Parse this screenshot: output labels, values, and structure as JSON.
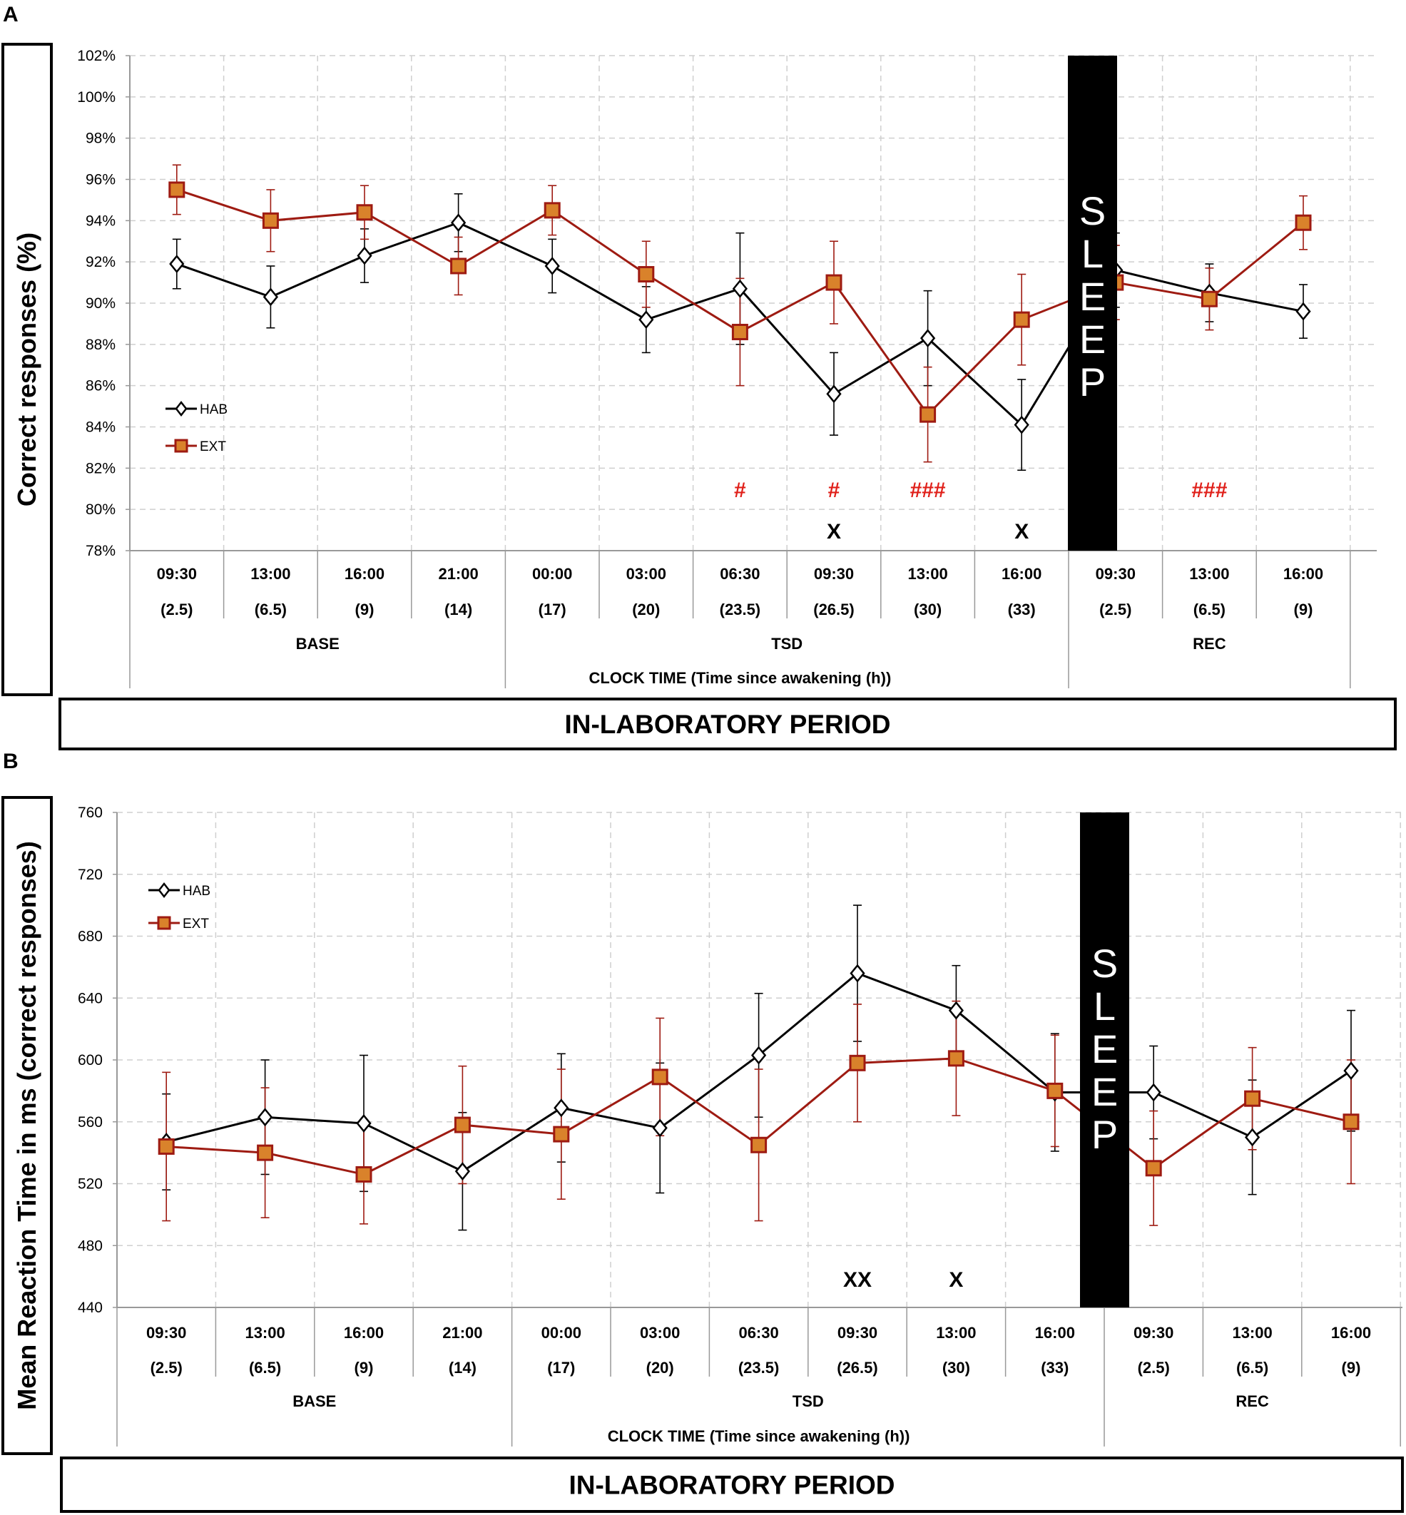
{
  "panel_letters": {
    "a": "A",
    "b": "B"
  },
  "chart_data": [
    {
      "type": "line",
      "panel": "A",
      "title": "",
      "ylabel": "Correct responses (%)",
      "xlabel": "CLOCK TIME  (Time since awakening (h))",
      "period_label": "IN-LABORATORY PERIOD",
      "ylim": [
        78,
        102
      ],
      "y_ticks": [
        78,
        80,
        82,
        84,
        86,
        88,
        90,
        92,
        94,
        96,
        98,
        100,
        102
      ],
      "y_tick_suffix": "%",
      "categories": [
        "09:30",
        "13:00",
        "16:00",
        "21:00",
        "00:00",
        "03:00",
        "06:30",
        "09:30",
        "13:00",
        "16:00",
        "09:30",
        "13:00",
        "16:00"
      ],
      "sub_categories": [
        "(2.5)",
        "(6.5)",
        "(9)",
        "(14)",
        "(17)",
        "(20)",
        "(23.5)",
        "(26.5)",
        "(30)",
        "(33)",
        "(2.5)",
        "(6.5)",
        "(9)"
      ],
      "groups": [
        {
          "label": "BASE",
          "start": 0,
          "end": 3
        },
        {
          "label": "TSD",
          "start": 4,
          "end": 9
        },
        {
          "label": "REC",
          "start": 10,
          "end": 12
        }
      ],
      "sleep_label": [
        "S",
        "L",
        "E",
        "E",
        "P"
      ],
      "series": [
        {
          "name": "HAB",
          "color": "#000000",
          "marker": "diamond",
          "values": [
            91.9,
            90.3,
            92.3,
            93.9,
            91.8,
            89.2,
            90.7,
            85.6,
            88.3,
            84.1,
            91.6,
            90.5,
            89.6
          ],
          "errors": [
            1.2,
            1.5,
            1.3,
            1.4,
            1.3,
            1.6,
            2.7,
            2.0,
            2.3,
            2.2,
            1.8,
            1.4,
            1.3
          ]
        },
        {
          "name": "EXT",
          "color": "#9e1b12",
          "marker": "square",
          "values": [
            95.5,
            94.0,
            94.4,
            91.8,
            94.5,
            91.4,
            88.6,
            91.0,
            84.6,
            89.2,
            91.0,
            90.2,
            93.9
          ],
          "errors": [
            1.2,
            1.5,
            1.3,
            1.4,
            1.2,
            1.6,
            2.6,
            2.0,
            2.3,
            2.2,
            1.8,
            1.5,
            1.3
          ]
        }
      ],
      "annotations_red": [
        {
          "index": 6,
          "text": "#"
        },
        {
          "index": 7,
          "text": "#"
        },
        {
          "index": 8,
          "text": "###"
        },
        {
          "index": 11,
          "text": "###"
        }
      ],
      "annotations_black": [
        {
          "index": 7,
          "text": "X"
        },
        {
          "index": 9,
          "text": "X"
        }
      ]
    },
    {
      "type": "line",
      "panel": "B",
      "title": "",
      "ylabel": "Mean Reaction Time in ms (correct responses)",
      "xlabel": "CLOCK TIME  (Time since awakening (h))",
      "period_label": "IN-LABORATORY PERIOD",
      "ylim": [
        440,
        760
      ],
      "y_ticks": [
        440,
        480,
        520,
        560,
        600,
        640,
        680,
        720,
        760
      ],
      "y_tick_suffix": "",
      "categories": [
        "09:30",
        "13:00",
        "16:00",
        "21:00",
        "00:00",
        "03:00",
        "06:30",
        "09:30",
        "13:00",
        "16:00",
        "09:30",
        "13:00",
        "16:00"
      ],
      "sub_categories": [
        "(2.5)",
        "(6.5)",
        "(9)",
        "(14)",
        "(17)",
        "(20)",
        "(23.5)",
        "(26.5)",
        "(30)",
        "(33)",
        "(2.5)",
        "(6.5)",
        "(9)"
      ],
      "groups": [
        {
          "label": "BASE",
          "start": 0,
          "end": 3
        },
        {
          "label": "TSD",
          "start": 4,
          "end": 9
        },
        {
          "label": "REC",
          "start": 10,
          "end": 12
        }
      ],
      "sleep_label": [
        "S",
        "L",
        "E",
        "E",
        "P"
      ],
      "series": [
        {
          "name": "HAB",
          "color": "#000000",
          "marker": "diamond",
          "values": [
            547,
            563,
            559,
            528,
            569,
            556,
            603,
            656,
            632,
            579,
            579,
            550,
            593
          ],
          "errors": [
            31,
            37,
            44,
            38,
            35,
            42,
            40,
            44,
            29,
            38,
            30,
            37,
            39
          ]
        },
        {
          "name": "EXT",
          "color": "#9e1b12",
          "marker": "square",
          "values": [
            544,
            540,
            526,
            558,
            552,
            589,
            545,
            598,
            601,
            580,
            530,
            575,
            560
          ],
          "errors": [
            48,
            42,
            32,
            38,
            42,
            38,
            49,
            38,
            37,
            36,
            37,
            33,
            40
          ]
        }
      ],
      "annotations_red": [],
      "annotations_black": [
        {
          "index": 7,
          "text": "XX"
        },
        {
          "index": 8,
          "text": "X"
        }
      ]
    }
  ]
}
